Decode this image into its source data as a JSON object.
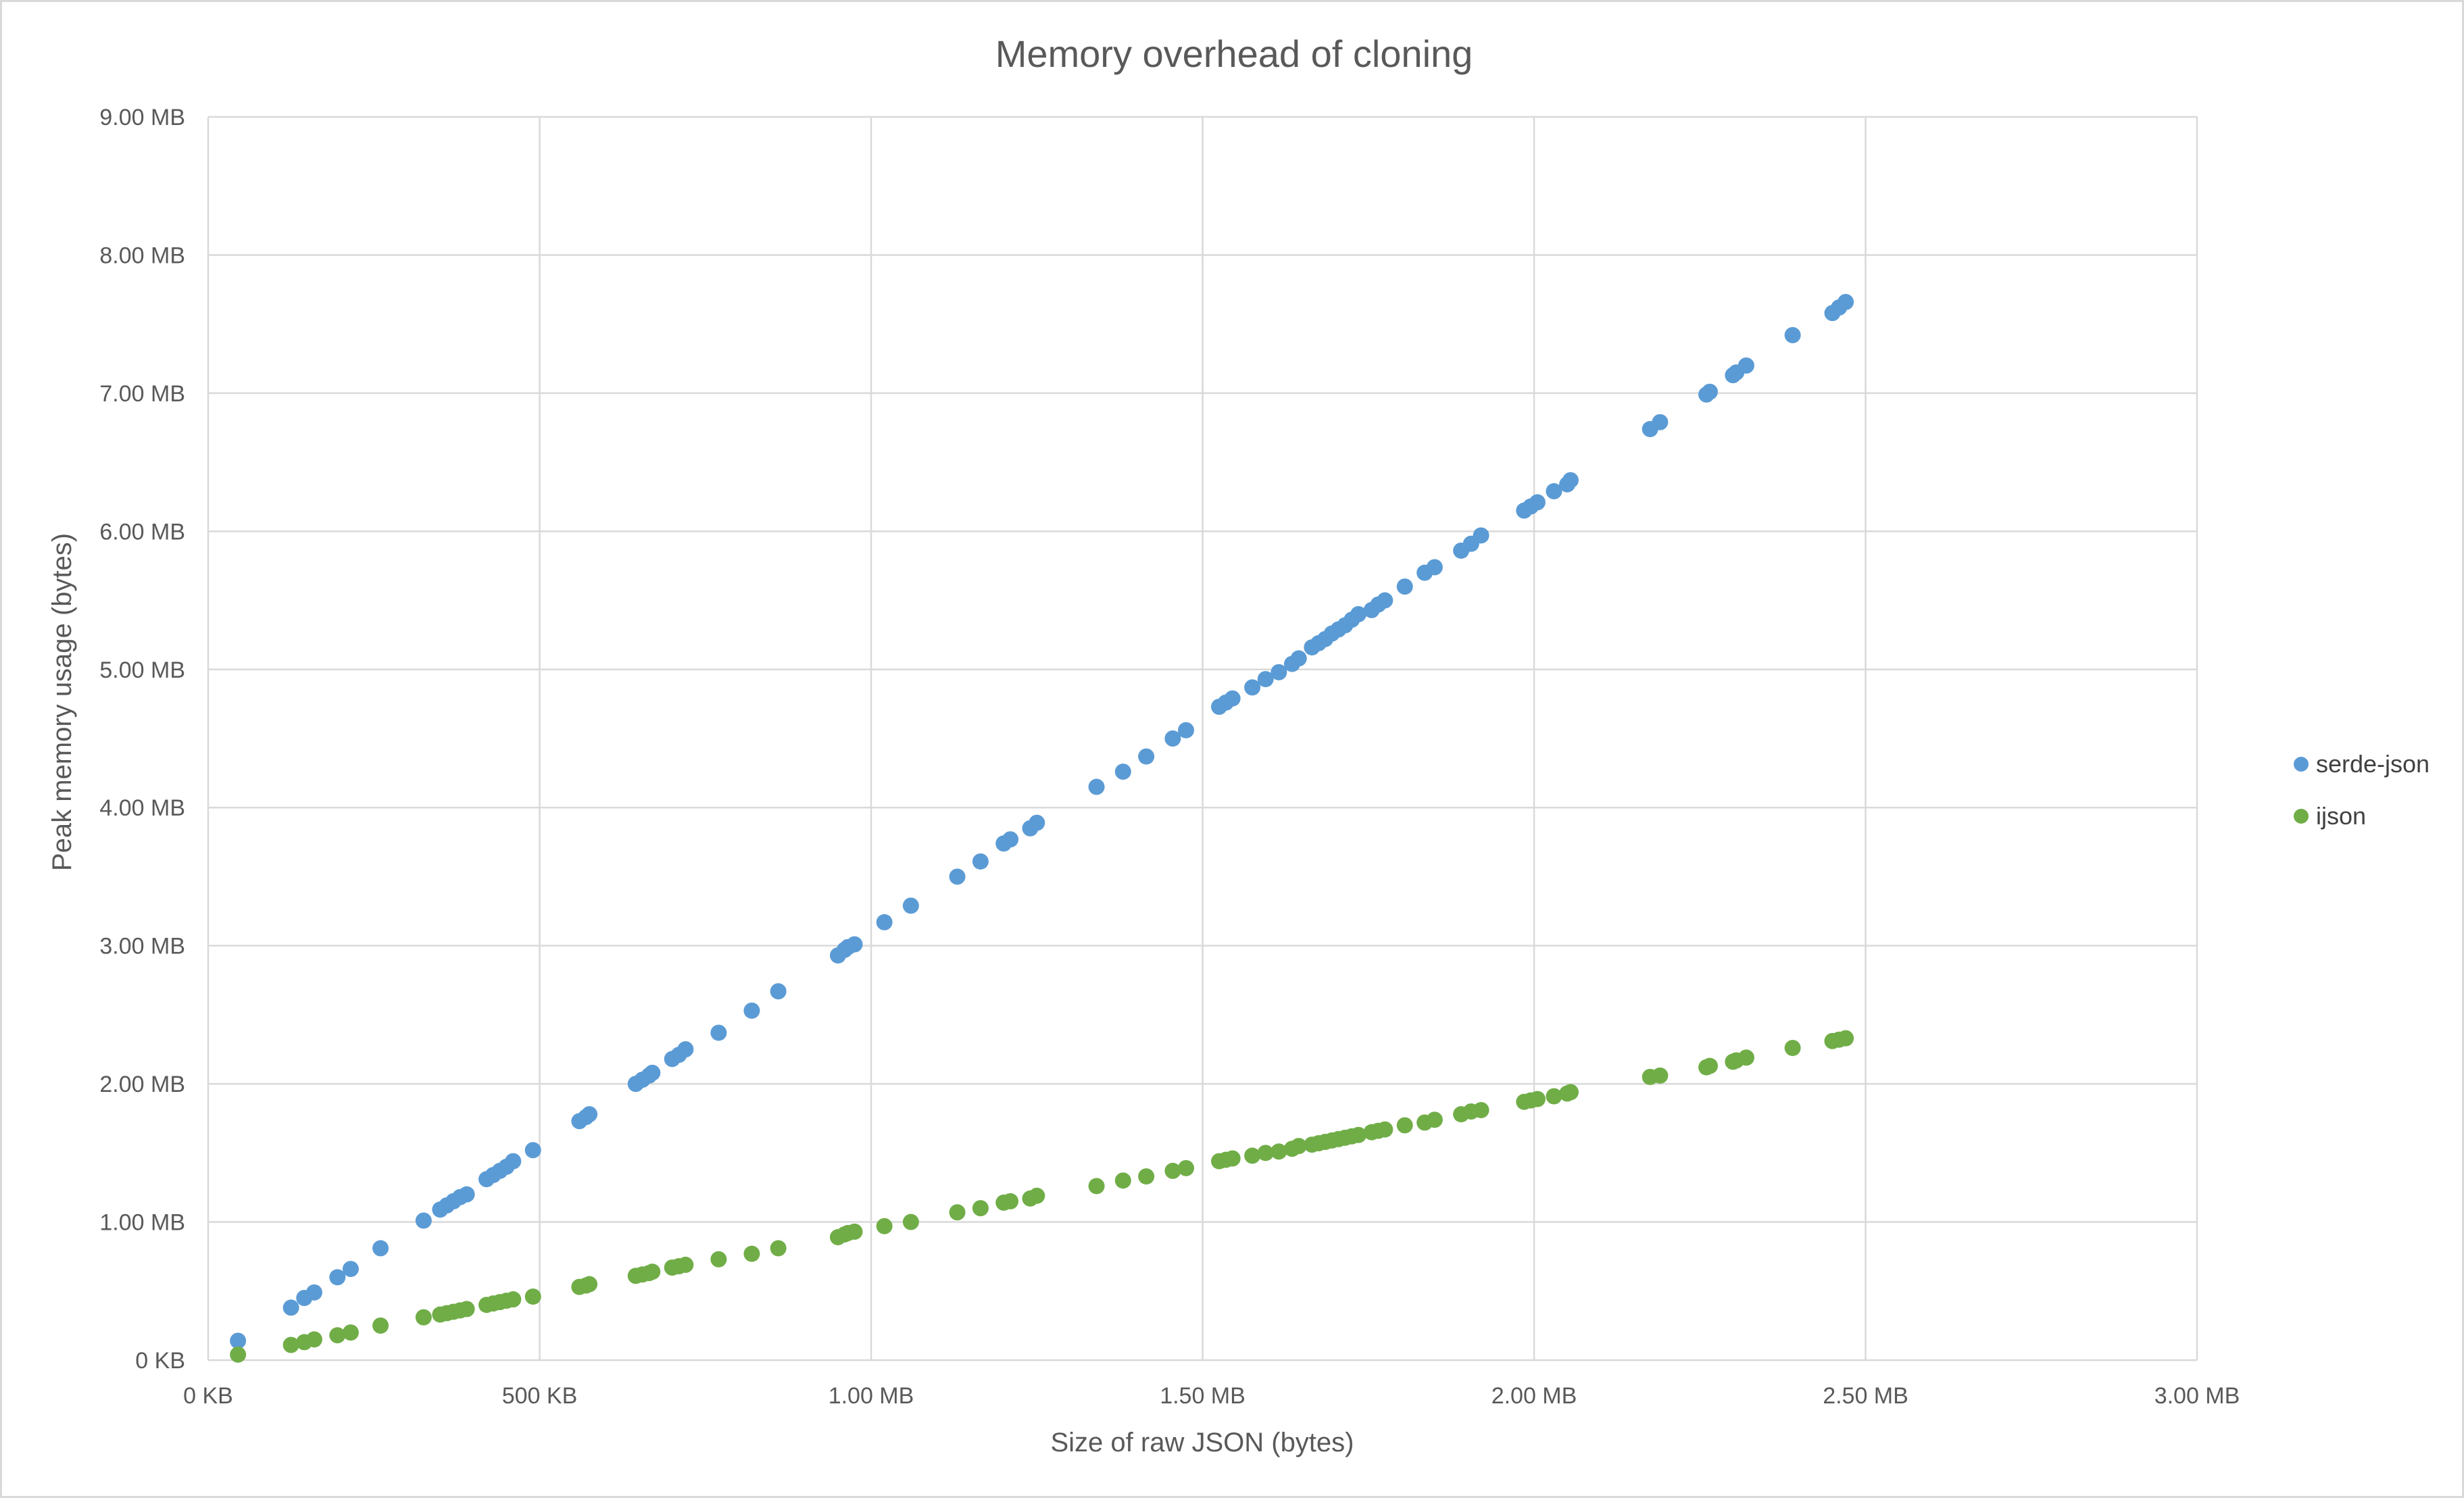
{
  "chart_data": {
    "type": "scatter",
    "title": "Memory overhead of cloning",
    "xlabel": "Size of raw JSON (bytes)",
    "ylabel": "Peak memory usage (bytes)",
    "xlim": [
      0,
      3.0
    ],
    "ylim": [
      0,
      9.0
    ],
    "x_unit": "MB",
    "y_unit": "MB",
    "x_ticks": [
      {
        "value": 0,
        "label": "0 KB"
      },
      {
        "value": 0.5,
        "label": "500 KB"
      },
      {
        "value": 1.0,
        "label": "1.00 MB"
      },
      {
        "value": 1.5,
        "label": "1.50 MB"
      },
      {
        "value": 2.0,
        "label": "2.00 MB"
      },
      {
        "value": 2.5,
        "label": "2.50 MB"
      },
      {
        "value": 3.0,
        "label": "3.00 MB"
      }
    ],
    "y_ticks": [
      {
        "value": 0,
        "label": "0 KB"
      },
      {
        "value": 1,
        "label": "1.00 MB"
      },
      {
        "value": 2,
        "label": "2.00 MB"
      },
      {
        "value": 3,
        "label": "3.00 MB"
      },
      {
        "value": 4,
        "label": "4.00 MB"
      },
      {
        "value": 5,
        "label": "5.00 MB"
      },
      {
        "value": 6,
        "label": "6.00 MB"
      },
      {
        "value": 7,
        "label": "7.00 MB"
      },
      {
        "value": 8,
        "label": "8.00 MB"
      },
      {
        "value": 9,
        "label": "9.00 MB"
      }
    ],
    "grid": true,
    "legend_position": "right",
    "x": [
      0.045,
      0.125,
      0.145,
      0.16,
      0.195,
      0.215,
      0.26,
      0.325,
      0.35,
      0.36,
      0.37,
      0.38,
      0.39,
      0.42,
      0.43,
      0.44,
      0.45,
      0.46,
      0.49,
      0.56,
      0.57,
      0.575,
      0.645,
      0.655,
      0.665,
      0.67,
      0.7,
      0.71,
      0.72,
      0.77,
      0.82,
      0.86,
      0.95,
      0.96,
      0.965,
      0.975,
      1.02,
      1.06,
      1.13,
      1.165,
      1.2,
      1.21,
      1.24,
      1.25,
      1.34,
      1.38,
      1.415,
      1.455,
      1.475,
      1.525,
      1.535,
      1.545,
      1.575,
      1.595,
      1.615,
      1.635,
      1.645,
      1.665,
      1.675,
      1.685,
      1.695,
      1.705,
      1.715,
      1.725,
      1.735,
      1.755,
      1.765,
      1.775,
      1.805,
      1.835,
      1.85,
      1.89,
      1.905,
      1.92,
      1.985,
      1.995,
      2.005,
      2.03,
      2.05,
      2.055,
      2.175,
      2.19,
      2.26,
      2.265,
      2.3,
      2.305,
      2.32,
      2.39,
      2.45,
      2.46,
      2.47
    ],
    "series": [
      {
        "name": "serde-json",
        "color": "#5b9bd5",
        "values": [
          0.14,
          0.38,
          0.45,
          0.49,
          0.6,
          0.66,
          0.81,
          1.01,
          1.09,
          1.12,
          1.15,
          1.18,
          1.2,
          1.31,
          1.34,
          1.37,
          1.4,
          1.44,
          1.52,
          1.73,
          1.76,
          1.78,
          2.0,
          2.03,
          2.06,
          2.08,
          2.18,
          2.21,
          2.25,
          2.37,
          2.53,
          2.67,
          2.93,
          2.97,
          2.99,
          3.01,
          3.17,
          3.29,
          3.5,
          3.61,
          3.74,
          3.77,
          3.85,
          3.89,
          4.15,
          4.26,
          4.37,
          4.5,
          4.56,
          4.73,
          4.76,
          4.79,
          4.87,
          4.93,
          4.98,
          5.04,
          5.08,
          5.16,
          5.19,
          5.22,
          5.26,
          5.29,
          5.32,
          5.36,
          5.4,
          5.43,
          5.47,
          5.5,
          5.6,
          5.7,
          5.74,
          5.86,
          5.91,
          5.97,
          6.15,
          6.18,
          6.21,
          6.29,
          6.34,
          6.37,
          6.74,
          6.79,
          6.99,
          7.01,
          7.13,
          7.15,
          7.2,
          7.42,
          7.58,
          7.62,
          7.66
        ]
      },
      {
        "name": "ijson",
        "color": "#70ad47",
        "values": [
          0.04,
          0.11,
          0.13,
          0.15,
          0.18,
          0.2,
          0.25,
          0.31,
          0.33,
          0.34,
          0.35,
          0.36,
          0.37,
          0.4,
          0.41,
          0.42,
          0.43,
          0.44,
          0.46,
          0.53,
          0.54,
          0.55,
          0.61,
          0.62,
          0.63,
          0.64,
          0.67,
          0.68,
          0.69,
          0.73,
          0.77,
          0.81,
          0.89,
          0.91,
          0.92,
          0.93,
          0.97,
          1.0,
          1.07,
          1.1,
          1.14,
          1.15,
          1.17,
          1.19,
          1.26,
          1.3,
          1.33,
          1.37,
          1.39,
          1.44,
          1.45,
          1.46,
          1.48,
          1.5,
          1.51,
          1.53,
          1.55,
          1.56,
          1.57,
          1.58,
          1.59,
          1.6,
          1.61,
          1.62,
          1.63,
          1.65,
          1.66,
          1.67,
          1.7,
          1.72,
          1.74,
          1.78,
          1.8,
          1.81,
          1.87,
          1.88,
          1.89,
          1.91,
          1.93,
          1.94,
          2.05,
          2.06,
          2.12,
          2.13,
          2.16,
          2.17,
          2.19,
          2.26,
          2.31,
          2.32,
          2.33
        ]
      }
    ]
  }
}
